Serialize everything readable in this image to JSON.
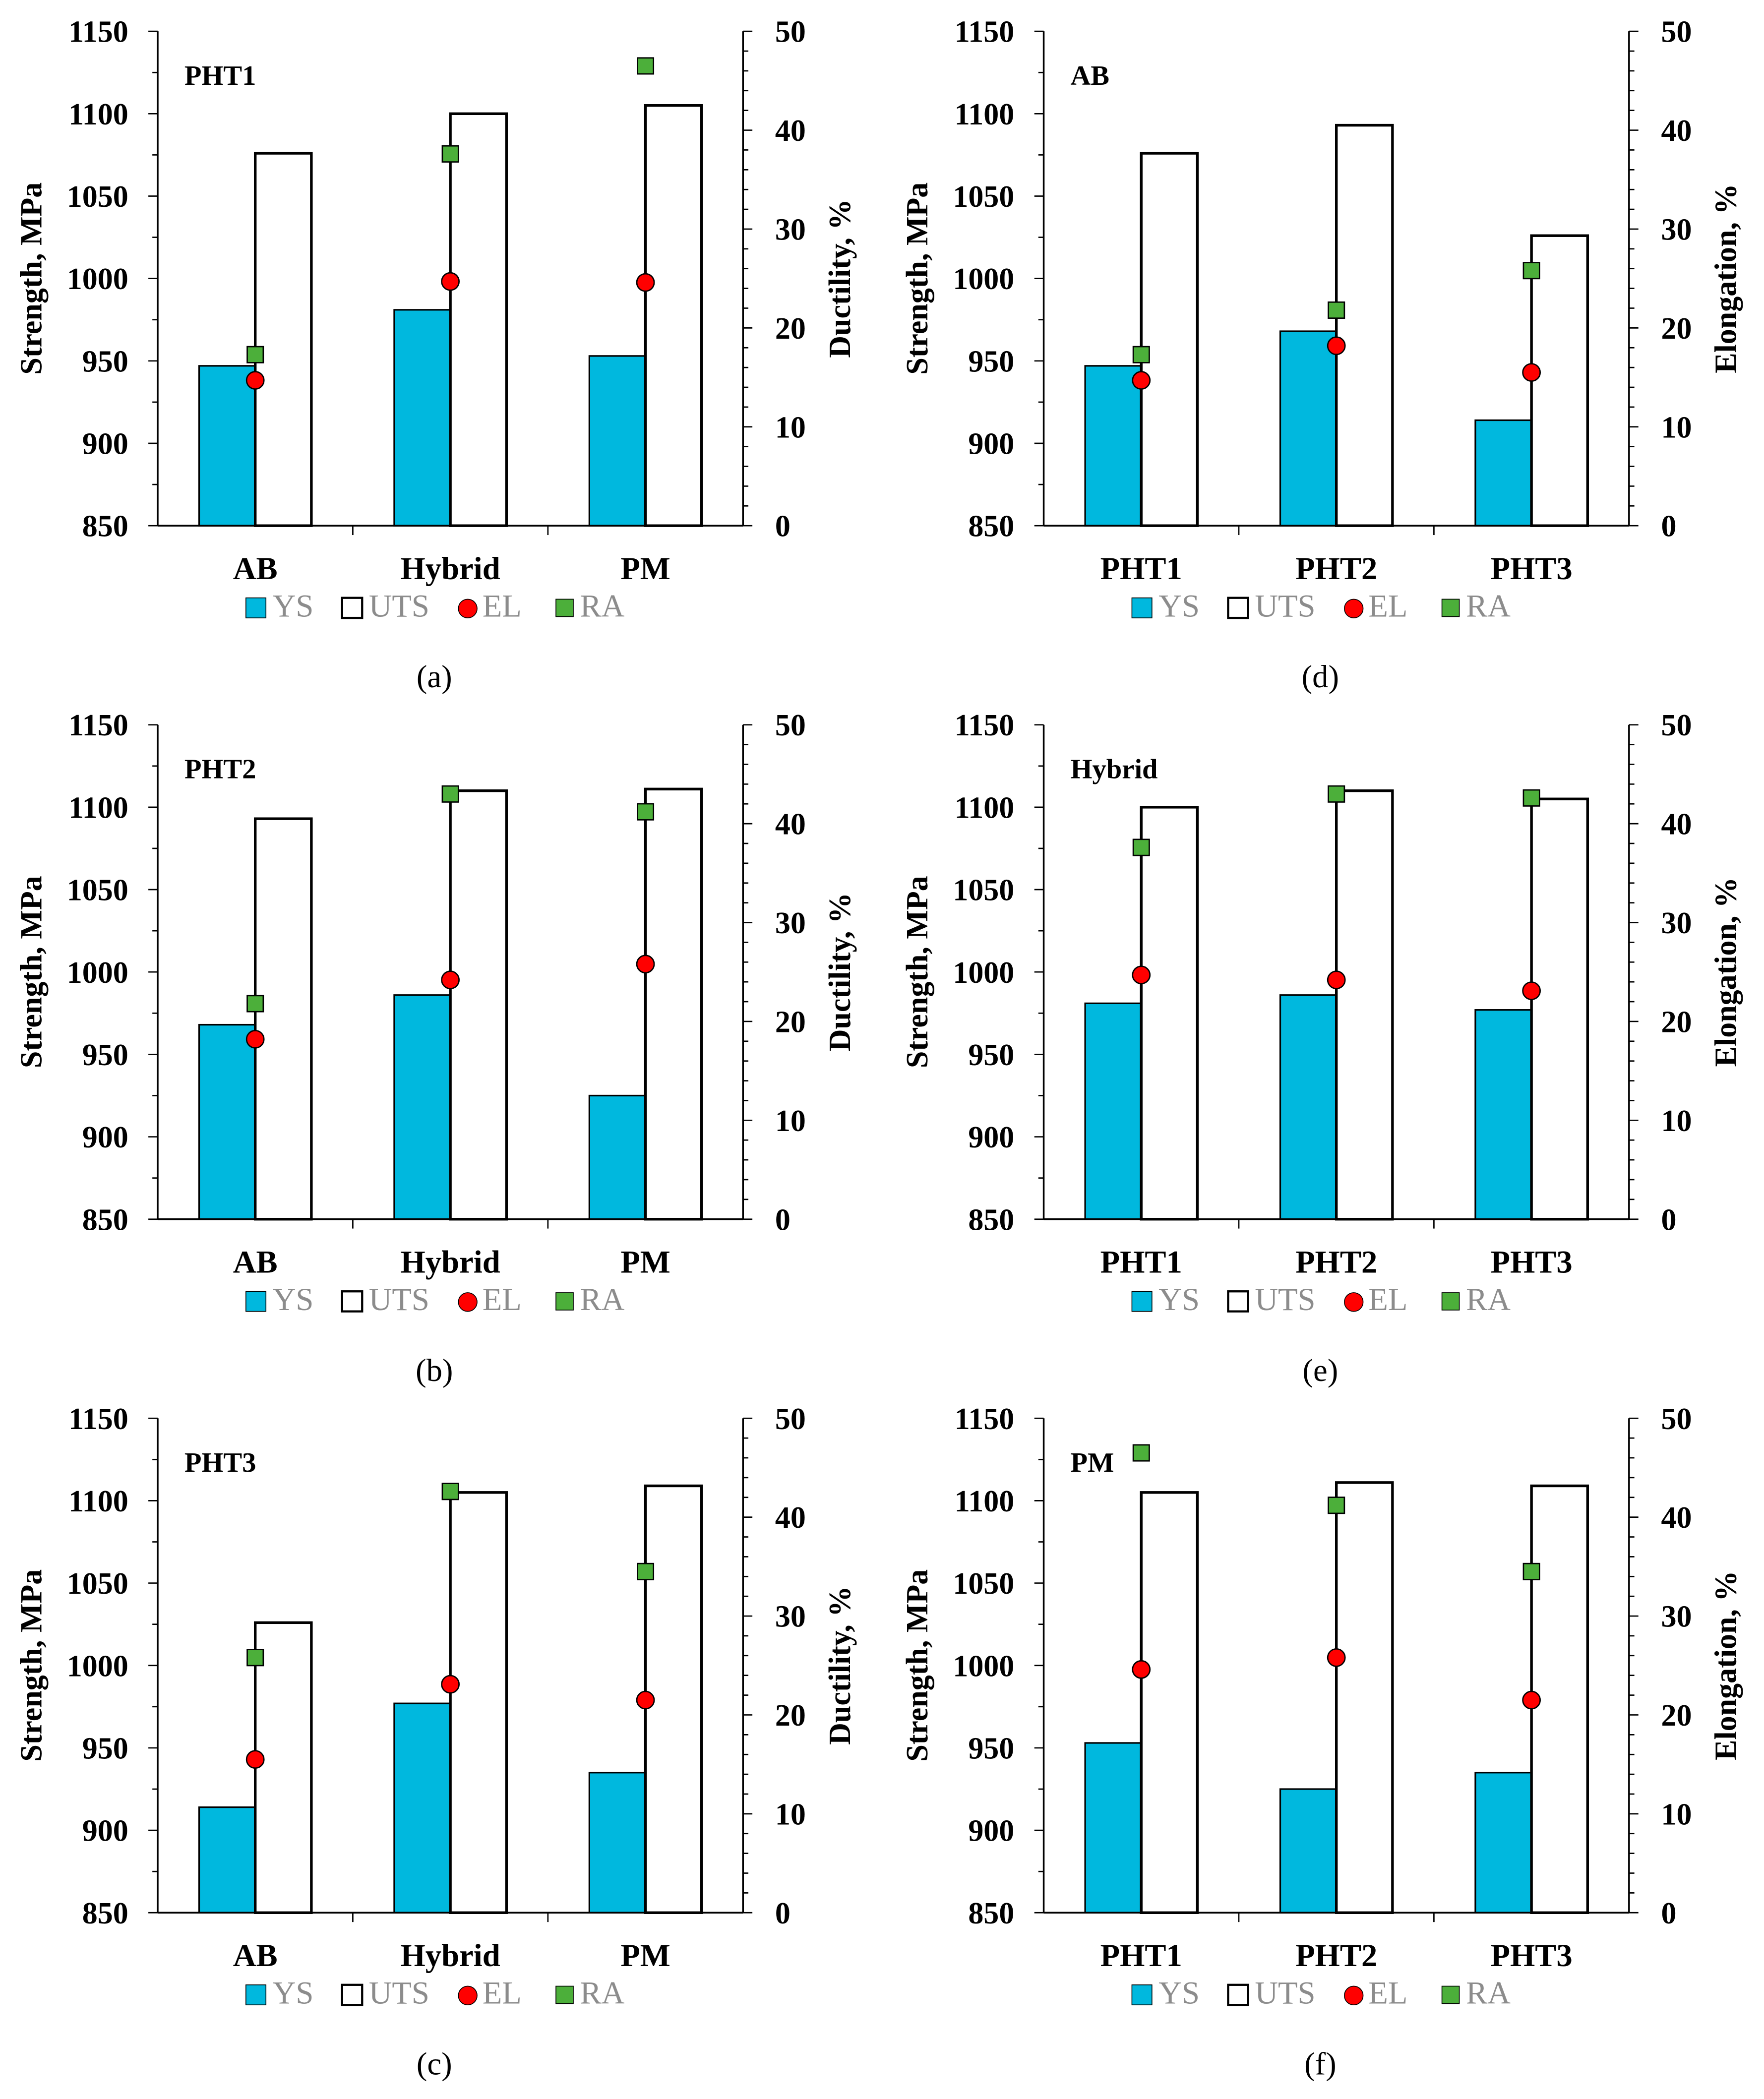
{
  "legend": {
    "ys": "YS",
    "uts": "UTS",
    "el": "EL",
    "ra": "RA"
  },
  "colors": {
    "ys": "#00B8DE",
    "uts": "#FFFFFF",
    "el": "#FF0000",
    "ra": "#4CAF3A",
    "legend_text": "#8C8C8C"
  },
  "chart_data": [
    {
      "type": "bar",
      "caption": "(a)",
      "title": "PHT1",
      "categories": [
        "AB",
        "Hybrid",
        "PM"
      ],
      "ylabel": "Strength, MPa",
      "y2label": "Ductility, %",
      "ylim": [
        850,
        1150
      ],
      "y2lim": [
        0,
        50
      ],
      "yticks": [
        850,
        900,
        950,
        1000,
        1050,
        1100,
        1150
      ],
      "y2ticks": [
        0,
        10,
        20,
        30,
        40,
        50
      ],
      "series": [
        {
          "name": "YS",
          "values": [
            947,
            981,
            953
          ]
        },
        {
          "name": "UTS",
          "values": [
            1076,
            1100,
            1105
          ]
        },
        {
          "name": "EL",
          "values": [
            14.7,
            24.7,
            24.6
          ]
        },
        {
          "name": "RA",
          "values": [
            17.3,
            37.6,
            46.5
          ]
        }
      ]
    },
    {
      "type": "bar",
      "caption": "(d)",
      "title": "AB",
      "categories": [
        "PHT1",
        "PHT2",
        "PHT3"
      ],
      "ylabel": "Strength, MPa",
      "y2label": "Elongation, %",
      "ylim": [
        850,
        1150
      ],
      "y2lim": [
        0,
        50
      ],
      "yticks": [
        850,
        900,
        950,
        1000,
        1050,
        1100,
        1150
      ],
      "y2ticks": [
        0,
        10,
        20,
        30,
        40,
        50
      ],
      "series": [
        {
          "name": "YS",
          "values": [
            947,
            968,
            914
          ]
        },
        {
          "name": "UTS",
          "values": [
            1076,
            1093,
            1026
          ]
        },
        {
          "name": "EL",
          "values": [
            14.7,
            18.2,
            15.5
          ]
        },
        {
          "name": "RA",
          "values": [
            17.3,
            21.8,
            25.8
          ]
        }
      ]
    },
    {
      "type": "bar",
      "caption": "(b)",
      "title": "PHT2",
      "categories": [
        "AB",
        "Hybrid",
        "PM"
      ],
      "ylabel": "Strength, MPa",
      "y2label": "Ductility, %",
      "ylim": [
        850,
        1150
      ],
      "y2lim": [
        0,
        50
      ],
      "yticks": [
        850,
        900,
        950,
        1000,
        1050,
        1100,
        1150
      ],
      "y2ticks": [
        0,
        10,
        20,
        30,
        40,
        50
      ],
      "series": [
        {
          "name": "YS",
          "values": [
            968,
            986,
            925
          ]
        },
        {
          "name": "UTS",
          "values": [
            1093,
            1110,
            1111
          ]
        },
        {
          "name": "EL",
          "values": [
            18.2,
            24.2,
            25.8
          ]
        },
        {
          "name": "RA",
          "values": [
            21.8,
            43.0,
            41.2
          ]
        }
      ]
    },
    {
      "type": "bar",
      "caption": "(e)",
      "title": "Hybrid",
      "categories": [
        "PHT1",
        "PHT2",
        "PHT3"
      ],
      "ylabel": "Strength, MPa",
      "y2label": "Elongation, %",
      "ylim": [
        850,
        1150
      ],
      "y2lim": [
        0,
        50
      ],
      "yticks": [
        850,
        900,
        950,
        1000,
        1050,
        1100,
        1150
      ],
      "y2ticks": [
        0,
        10,
        20,
        30,
        40,
        50
      ],
      "series": [
        {
          "name": "YS",
          "values": [
            981,
            986,
            977
          ]
        },
        {
          "name": "UTS",
          "values": [
            1100,
            1110,
            1105
          ]
        },
        {
          "name": "EL",
          "values": [
            24.7,
            24.2,
            23.1
          ]
        },
        {
          "name": "RA",
          "values": [
            37.6,
            43.0,
            42.6
          ]
        }
      ]
    },
    {
      "type": "bar",
      "caption": "(c)",
      "title": "PHT3",
      "categories": [
        "AB",
        "Hybrid",
        "PM"
      ],
      "ylabel": "Strength, MPa",
      "y2label": "Ductility, %",
      "ylim": [
        850,
        1150
      ],
      "y2lim": [
        0,
        50
      ],
      "yticks": [
        850,
        900,
        950,
        1000,
        1050,
        1100,
        1150
      ],
      "y2ticks": [
        0,
        10,
        20,
        30,
        40,
        50
      ],
      "series": [
        {
          "name": "YS",
          "values": [
            914,
            977,
            935
          ]
        },
        {
          "name": "UTS",
          "values": [
            1026,
            1105,
            1109
          ]
        },
        {
          "name": "EL",
          "values": [
            15.5,
            23.1,
            21.5
          ]
        },
        {
          "name": "RA",
          "values": [
            25.8,
            42.6,
            34.5
          ]
        }
      ]
    },
    {
      "type": "bar",
      "caption": "(f)",
      "title": "PM",
      "categories": [
        "PHT1",
        "PHT2",
        "PHT3"
      ],
      "ylabel": "Strength, MPa",
      "y2label": "Elongation, %",
      "ylim": [
        850,
        1150
      ],
      "y2lim": [
        0,
        50
      ],
      "yticks": [
        850,
        900,
        950,
        1000,
        1050,
        1100,
        1150
      ],
      "y2ticks": [
        0,
        10,
        20,
        30,
        40,
        50
      ],
      "series": [
        {
          "name": "YS",
          "values": [
            953,
            925,
            935
          ]
        },
        {
          "name": "UTS",
          "values": [
            1105,
            1111,
            1109
          ]
        },
        {
          "name": "EL",
          "values": [
            24.6,
            25.8,
            21.5
          ]
        },
        {
          "name": "RA",
          "values": [
            46.5,
            41.2,
            34.5
          ]
        }
      ]
    }
  ]
}
